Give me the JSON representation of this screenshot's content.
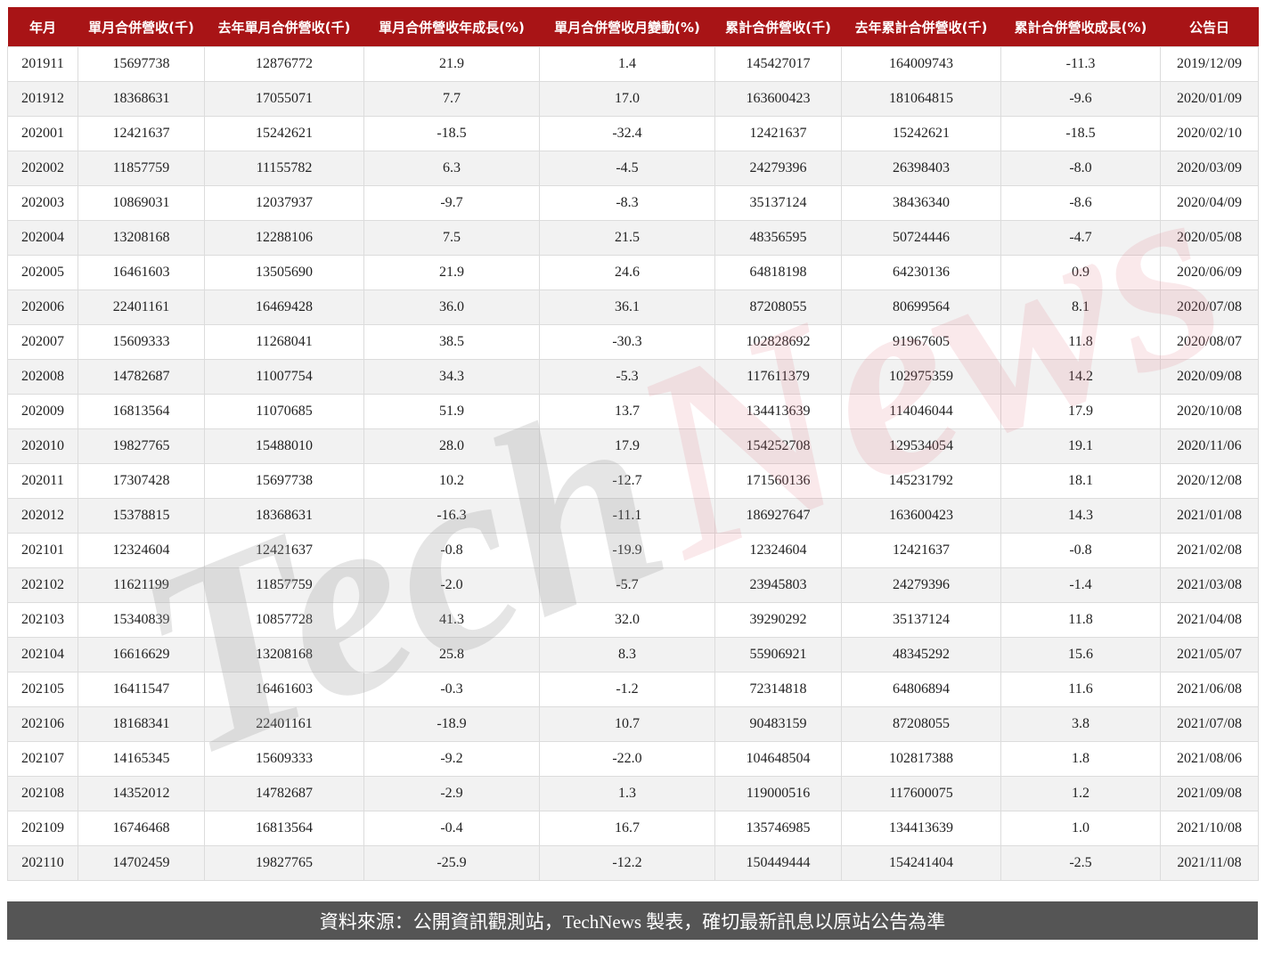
{
  "table": {
    "headers": [
      "年月",
      "單月合併營收(千)",
      "去年單月合併營收(千)",
      "單月合併營收年成長(%)",
      "單月合併營收月變動(%)",
      "累計合併營收(千)",
      "去年累計合併營收(千)",
      "累計合併營收成長(%)",
      "公告日"
    ],
    "rows": [
      [
        "201911",
        "15697738",
        "12876772",
        "21.9",
        "1.4",
        "145427017",
        "164009743",
        "-11.3",
        "2019/12/09"
      ],
      [
        "201912",
        "18368631",
        "17055071",
        "7.7",
        "17.0",
        "163600423",
        "181064815",
        "-9.6",
        "2020/01/09"
      ],
      [
        "202001",
        "12421637",
        "15242621",
        "-18.5",
        "-32.4",
        "12421637",
        "15242621",
        "-18.5",
        "2020/02/10"
      ],
      [
        "202002",
        "11857759",
        "11155782",
        "6.3",
        "-4.5",
        "24279396",
        "26398403",
        "-8.0",
        "2020/03/09"
      ],
      [
        "202003",
        "10869031",
        "12037937",
        "-9.7",
        "-8.3",
        "35137124",
        "38436340",
        "-8.6",
        "2020/04/09"
      ],
      [
        "202004",
        "13208168",
        "12288106",
        "7.5",
        "21.5",
        "48356595",
        "50724446",
        "-4.7",
        "2020/05/08"
      ],
      [
        "202005",
        "16461603",
        "13505690",
        "21.9",
        "24.6",
        "64818198",
        "64230136",
        "0.9",
        "2020/06/09"
      ],
      [
        "202006",
        "22401161",
        "16469428",
        "36.0",
        "36.1",
        "87208055",
        "80699564",
        "8.1",
        "2020/07/08"
      ],
      [
        "202007",
        "15609333",
        "11268041",
        "38.5",
        "-30.3",
        "102828692",
        "91967605",
        "11.8",
        "2020/08/07"
      ],
      [
        "202008",
        "14782687",
        "11007754",
        "34.3",
        "-5.3",
        "117611379",
        "102975359",
        "14.2",
        "2020/09/08"
      ],
      [
        "202009",
        "16813564",
        "11070685",
        "51.9",
        "13.7",
        "134413639",
        "114046044",
        "17.9",
        "2020/10/08"
      ],
      [
        "202010",
        "19827765",
        "15488010",
        "28.0",
        "17.9",
        "154252708",
        "129534054",
        "19.1",
        "2020/11/06"
      ],
      [
        "202011",
        "17307428",
        "15697738",
        "10.2",
        "-12.7",
        "171560136",
        "145231792",
        "18.1",
        "2020/12/08"
      ],
      [
        "202012",
        "15378815",
        "18368631",
        "-16.3",
        "-11.1",
        "186927647",
        "163600423",
        "14.3",
        "2021/01/08"
      ],
      [
        "202101",
        "12324604",
        "12421637",
        "-0.8",
        "-19.9",
        "12324604",
        "12421637",
        "-0.8",
        "2021/02/08"
      ],
      [
        "202102",
        "11621199",
        "11857759",
        "-2.0",
        "-5.7",
        "23945803",
        "24279396",
        "-1.4",
        "2021/03/08"
      ],
      [
        "202103",
        "15340839",
        "10857728",
        "41.3",
        "32.0",
        "39290292",
        "35137124",
        "11.8",
        "2021/04/08"
      ],
      [
        "202104",
        "16616629",
        "13208168",
        "25.8",
        "8.3",
        "55906921",
        "48345292",
        "15.6",
        "2021/05/07"
      ],
      [
        "202105",
        "16411547",
        "16461603",
        "-0.3",
        "-1.2",
        "72314818",
        "64806894",
        "11.6",
        "2021/06/08"
      ],
      [
        "202106",
        "18168341",
        "22401161",
        "-18.9",
        "10.7",
        "90483159",
        "87208055",
        "3.8",
        "2021/07/08"
      ],
      [
        "202107",
        "14165345",
        "15609333",
        "-9.2",
        "-22.0",
        "104648504",
        "102817388",
        "1.8",
        "2021/08/06"
      ],
      [
        "202108",
        "14352012",
        "14782687",
        "-2.9",
        "1.3",
        "119000516",
        "117600075",
        "1.2",
        "2021/09/08"
      ],
      [
        "202109",
        "16746468",
        "16813564",
        "-0.4",
        "16.7",
        "135746985",
        "134413639",
        "1.0",
        "2021/10/08"
      ],
      [
        "202110",
        "14702459",
        "19827765",
        "-25.9",
        "-12.2",
        "150449444",
        "154241404",
        "-2.5",
        "2021/11/08"
      ]
    ]
  },
  "watermark": {
    "part1": "Tech",
    "part2": "News",
    "color1": "#9a9a9a",
    "color2": "#e07080"
  },
  "footer": {
    "text": "資料來源：公開資訊觀測站，TechNews 製表，確切最新訊息以原站公告為準"
  },
  "colors": {
    "header_bg": "#a81416",
    "footer_bg": "#555555",
    "alt_row": "#f2f2f2"
  }
}
